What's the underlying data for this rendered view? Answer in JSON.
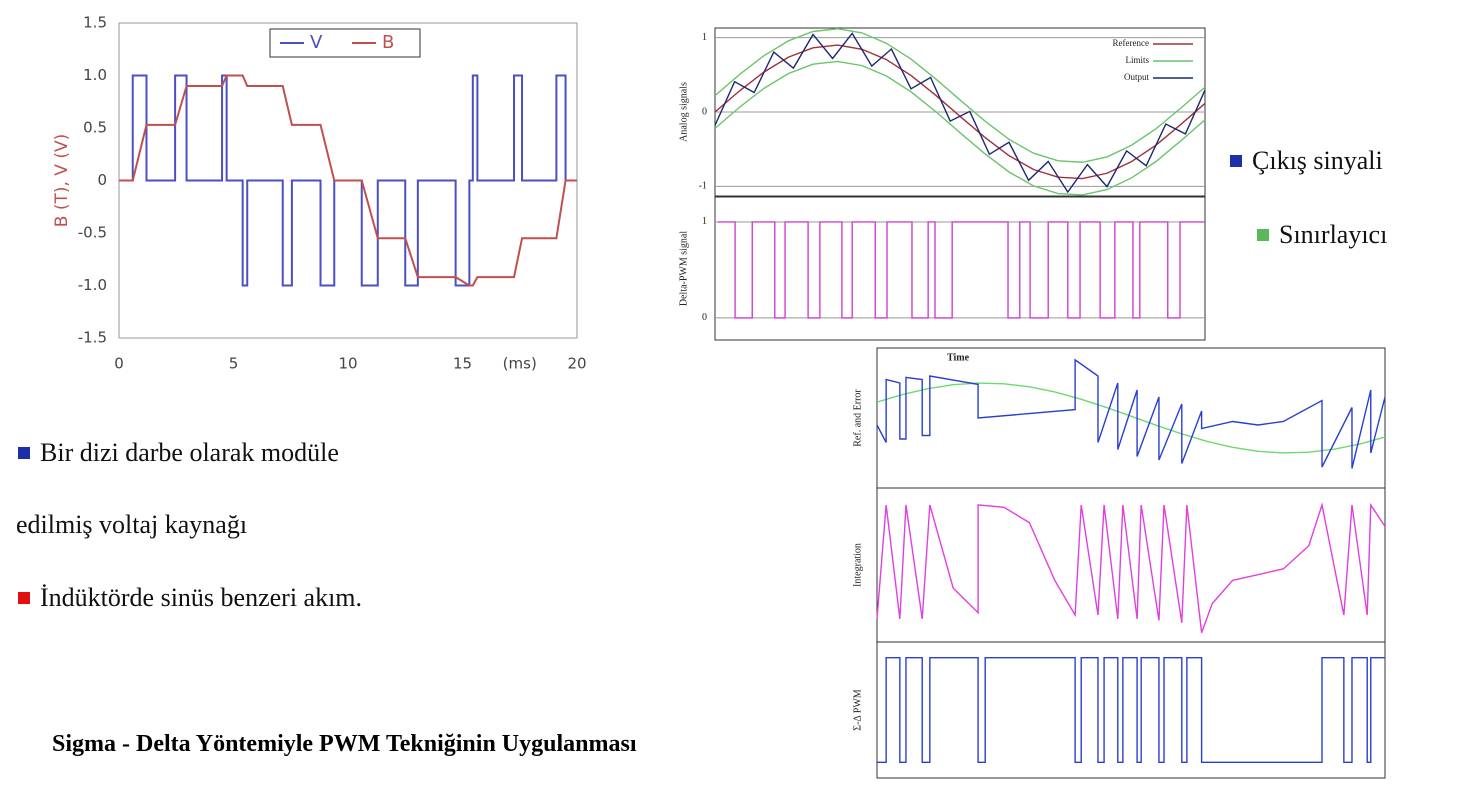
{
  "chart_data": [
    {
      "type": "line",
      "y_label": "B (T), V (V)",
      "x_unit": "(ms)",
      "xlim": [
        0,
        20
      ],
      "xticks": [
        0,
        5,
        10,
        15,
        20
      ],
      "ylim": [
        -1.5,
        1.5
      ],
      "yticks": [
        1.5,
        {
          "value": 1,
          "label": "1.0"
        },
        0.5,
        0,
        -0.5,
        {
          "value": -1,
          "label": "-1.0"
        },
        -1.5
      ],
      "grid": false,
      "legend": "upper center",
      "series": [
        {
          "name": "V",
          "color": "#4a4fc4",
          "step": true,
          "x": [
            0,
            0.6,
            1.2,
            2.45,
            2.95,
            4.5,
            4.7,
            5.4,
            5.6,
            7.15,
            7.55,
            8.8,
            9.4,
            10.6,
            11.3,
            12.5,
            13.05,
            14.7,
            15.3,
            15.45,
            15.65,
            17.25,
            17.6,
            19.1,
            19.5,
            20
          ],
          "values": [
            0,
            1,
            0,
            1,
            0,
            1,
            0,
            -1,
            0,
            -1,
            0,
            -1,
            0,
            -1,
            0,
            -1,
            0,
            -1,
            0,
            1,
            0,
            1,
            0,
            1,
            0,
            0
          ]
        },
        {
          "name": "B",
          "color": "#c0504d",
          "x": [
            0,
            0.6,
            1.2,
            2.45,
            2.95,
            4.5,
            4.7,
            5.4,
            5.6,
            7.15,
            7.55,
            8.8,
            9.4,
            10.6,
            11.3,
            12.5,
            13.05,
            14.7,
            15.3,
            15.45,
            15.65,
            17.25,
            17.6,
            19.1,
            19.5,
            20
          ],
          "values": [
            0,
            0,
            0.53,
            0.53,
            0.9,
            0.9,
            1.0,
            1.0,
            0.9,
            0.9,
            0.53,
            0.53,
            0,
            0,
            -0.55,
            -0.55,
            -0.92,
            -0.92,
            -1.0,
            -1.0,
            -0.92,
            -0.92,
            -0.55,
            -0.55,
            0,
            0
          ]
        }
      ]
    },
    {
      "type": "line",
      "y_label": "Analog signals",
      "xlim": [
        0,
        100
      ],
      "ylim": [
        -1.13,
        1.13
      ],
      "yticks": [
        -1,
        0,
        1
      ],
      "grid": true,
      "legend": "upper right",
      "series": [
        {
          "name": "Reference",
          "color": "#a0303a",
          "x": [
            0,
            5,
            10,
            15,
            20,
            25,
            30,
            35,
            40,
            45,
            50,
            55,
            60,
            65,
            70,
            75,
            80,
            85,
            90,
            95,
            100
          ],
          "values": [
            0,
            0.284,
            0.538,
            0.738,
            0.863,
            0.9,
            0.844,
            0.704,
            0.492,
            0.228,
            -0.058,
            -0.337,
            -0.587,
            -0.774,
            -0.877,
            -0.896,
            -0.824,
            -0.667,
            -0.446,
            -0.171,
            0.115
          ]
        },
        {
          "name": "Limits",
          "color": "#6cc46c",
          "x": [
            0,
            5,
            10,
            15,
            20,
            25,
            30,
            35,
            40,
            45,
            50,
            55,
            60,
            65,
            70,
            75,
            80,
            85,
            90,
            95,
            100
          ],
          "upper": [
            0.22,
            0.504,
            0.758,
            0.958,
            1.083,
            1.12,
            1.064,
            0.924,
            0.712,
            0.448,
            0.162,
            -0.117,
            -0.367,
            -0.554,
            -0.657,
            -0.676,
            -0.604,
            -0.447,
            -0.226,
            0.049,
            0.335
          ],
          "lower": [
            -0.22,
            0.064,
            0.318,
            0.518,
            0.643,
            0.68,
            0.624,
            0.484,
            0.272,
            0.008,
            -0.278,
            -0.557,
            -0.807,
            -0.994,
            -1.097,
            -1.116,
            -1.044,
            -0.887,
            -0.666,
            -0.391,
            -0.105
          ]
        },
        {
          "name": "Output",
          "color": "#1c2870",
          "x": [
            0,
            4,
            8,
            12,
            16,
            20,
            24,
            28,
            32,
            36,
            40,
            44,
            48,
            52,
            56,
            60,
            64,
            68,
            72,
            76,
            80,
            84,
            88,
            92,
            96,
            100
          ],
          "values": [
            -0.18,
            0.408,
            0.262,
            0.806,
            0.59,
            1.043,
            0.72,
            1.058,
            0.618,
            0.847,
            0.312,
            0.464,
            -0.122,
            0.008,
            -0.569,
            -0.407,
            -0.919,
            -0.665,
            -1.076,
            -0.708,
            -1.004,
            -0.523,
            -0.723,
            -0.162,
            -0.295,
            0.295
          ]
        }
      ]
    },
    {
      "type": "line",
      "y_label": "Delta-PWM signal",
      "xlim": [
        0,
        100
      ],
      "ylim": [
        -0.23,
        1.26
      ],
      "yticks": [
        0,
        1
      ],
      "grid": true,
      "series": [
        {
          "color": "#d040d0",
          "step": true,
          "x": [
            0.6,
            4.1,
            7.6,
            12.2,
            14.3,
            19.0,
            21.4,
            25.9,
            28.0,
            32.7,
            35.1,
            40.2,
            43.5,
            44.9,
            48.4,
            59.8,
            62.2,
            64.3,
            68.0,
            72.0,
            74.5,
            78.6,
            81.6,
            85.3,
            86.7,
            92.4,
            94.9,
            100
          ],
          "values": [
            1,
            0,
            1,
            0,
            1,
            0,
            1,
            0,
            1,
            0,
            1,
            0,
            1,
            0,
            1,
            0,
            1,
            0,
            1,
            0,
            1,
            0,
            1,
            0,
            1,
            0,
            1,
            1
          ]
        }
      ]
    },
    {
      "type": "line",
      "y_label": "Ref. and Error",
      "annotation": "Time",
      "xlim": [
        0,
        100
      ],
      "ylim": [
        -1,
        1
      ],
      "series": [
        {
          "color": "#6fd86f",
          "x": [
            0,
            5,
            10,
            15,
            20,
            25,
            30,
            35,
            40,
            45,
            50,
            55,
            60,
            65,
            70,
            75,
            80,
            85,
            90,
            95,
            100
          ],
          "values": [
            0.227,
            0.335,
            0.419,
            0.476,
            0.499,
            0.489,
            0.446,
            0.372,
            0.272,
            0.155,
            0.026,
            -0.104,
            -0.227,
            -0.335,
            -0.419,
            -0.476,
            -0.499,
            -0.489,
            -0.446,
            -0.372,
            -0.272
          ]
        },
        {
          "color": "#2a3fd0",
          "x": [
            0,
            1.8,
            1.8,
            4.5,
            4.5,
            5.7,
            5.7,
            8.9,
            8.9,
            10.4,
            10.4,
            19.9,
            19.9,
            39.0,
            39.0,
            43.5,
            43.5,
            47.4,
            47.4,
            51.2,
            51.2,
            55.5,
            55.5,
            60.0,
            60.0,
            63.9,
            63.9,
            70,
            75,
            80,
            87.6,
            87.6,
            93.5,
            93.5,
            97.2,
            97.2,
            100
          ],
          "values": [
            -0.1,
            -0.35,
            0.55,
            0.5,
            -0.3,
            -0.3,
            0.58,
            0.55,
            -0.25,
            -0.25,
            0.6,
            0.48,
            0.0,
            0.12,
            0.83,
            0.6,
            -0.35,
            0.5,
            -0.45,
            0.4,
            -0.55,
            0.3,
            -0.6,
            0.2,
            -0.65,
            0.1,
            -0.15,
            -0.05,
            -0.1,
            -0.05,
            0.25,
            -0.7,
            0.15,
            -0.72,
            0.4,
            -0.5,
            0.3
          ]
        }
      ]
    },
    {
      "type": "line",
      "y_label": "Integration",
      "xlim": [
        0,
        100
      ],
      "ylim": [
        -1,
        1
      ],
      "series": [
        {
          "color": "#e040e0",
          "x": [
            0,
            1.8,
            4.5,
            5.7,
            8.9,
            10.4,
            15,
            19.9,
            19.9,
            25,
            30,
            35,
            39.0,
            40.2,
            43.5,
            44.7,
            47.4,
            48.4,
            51.2,
            52.0,
            55.5,
            56.5,
            60.0,
            61.0,
            63.9,
            66,
            70,
            80,
            85,
            87.6,
            91.9,
            93.5,
            96.5,
            97.2,
            100
          ],
          "values": [
            -0.7,
            0.78,
            -0.7,
            0.78,
            -0.7,
            0.78,
            -0.3,
            -0.62,
            0.78,
            0.75,
            0.55,
            -0.2,
            -0.65,
            0.78,
            -0.65,
            0.78,
            -0.7,
            0.78,
            -0.7,
            0.78,
            -0.72,
            0.78,
            -0.75,
            0.78,
            -0.88,
            -0.5,
            -0.2,
            -0.05,
            0.25,
            0.78,
            -0.65,
            0.78,
            -0.65,
            0.78,
            0.5
          ]
        }
      ]
    },
    {
      "type": "line",
      "y_label": "Σ-Δ PWM",
      "xlim": [
        0,
        100
      ],
      "ylim": [
        -0.15,
        1.15
      ],
      "series": [
        {
          "color": "#2a3fd0",
          "step": true,
          "x": [
            0,
            1.8,
            4.5,
            5.7,
            8.9,
            10.4,
            19.9,
            21.3,
            39.0,
            40.2,
            43.5,
            44.7,
            47.4,
            48.4,
            51.2,
            52.0,
            55.5,
            56.5,
            60.0,
            61.0,
            63.9,
            87.6,
            91.9,
            93.5,
            96.5,
            97.2,
            100
          ],
          "values": [
            0,
            1,
            0,
            1,
            0,
            1,
            0,
            1,
            0,
            1,
            0,
            1,
            0,
            1,
            0,
            1,
            0,
            1,
            0,
            1,
            0,
            1,
            0,
            1,
            0,
            1,
            1
          ]
        }
      ]
    }
  ],
  "side_notes": [
    {
      "text": "Çıkış sinyali",
      "color": "#1c2fa8"
    },
    {
      "text": "Sınırlayıcı",
      "color": "#5cb85c"
    }
  ],
  "bullets": [
    {
      "text": "Bir dizi darbe olarak modüle",
      "color": "#1c2fa8"
    },
    {
      "text": "edilmiş voltaj kaynağı"
    },
    {
      "text": "İndüktörde sinüs benzeri akım.",
      "color": "#e01010"
    }
  ],
  "caption": "Sigma - Delta Yöntemiyle PWM Tekniğinin Uygulanması"
}
